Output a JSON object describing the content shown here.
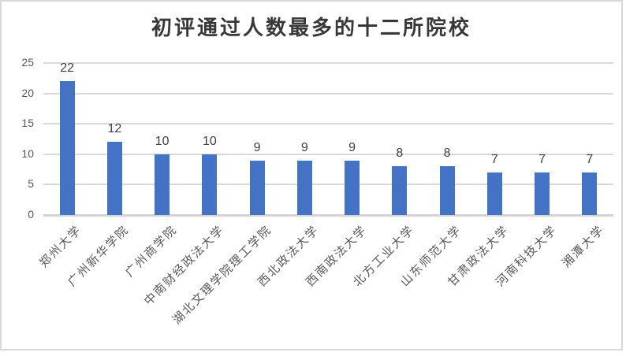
{
  "chart_data": {
    "type": "bar",
    "title": "初评通过人数最多的十二所院校",
    "categories": [
      "郑州大学",
      "广州新华学院",
      "广州商学院",
      "中南财经政法大学",
      "湖北文理学院理工学院",
      "西北政法大学",
      "西南政法大学",
      "北方工业大学",
      "山东师范大学",
      "甘肃政法大学",
      "河南科技大学",
      "湘潭大学"
    ],
    "values": [
      22,
      12,
      10,
      10,
      9,
      9,
      9,
      8,
      8,
      7,
      7,
      7
    ],
    "data_labels": [
      22,
      12,
      10,
      10,
      9,
      9,
      9,
      8,
      8,
      7,
      7,
      7
    ],
    "xlabel": "",
    "ylabel": "",
    "ylim": [
      0,
      25
    ],
    "yticks": [
      0,
      5,
      10,
      15,
      20,
      25
    ],
    "grid": true,
    "legend": false,
    "colors": {
      "bar": "#4472c4",
      "gridline": "#d9d9d9",
      "title_text": "#383838",
      "axis_text": "#595959",
      "data_label_text": "#404040",
      "frame_border": "#d8d8d8",
      "background": "#ffffff"
    }
  }
}
